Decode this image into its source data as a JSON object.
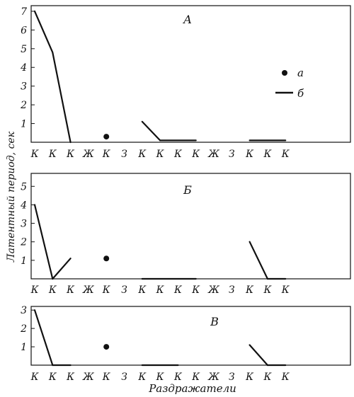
{
  "figure": {
    "ylabel": "Латентный период, сек",
    "xlabel": "Раздражатели"
  },
  "legend": {
    "items": [
      {
        "marker": "dot",
        "label": "а"
      },
      {
        "marker": "line",
        "label": "б"
      }
    ]
  },
  "stimuli": [
    "К",
    "К",
    "К",
    "Ж",
    "К",
    "З",
    "К",
    "К",
    "К",
    "К",
    "Ж",
    "З",
    "К",
    "К",
    "К"
  ],
  "chart_data": [
    {
      "type": "line",
      "title": "А",
      "yticks": [
        1,
        2,
        3,
        4,
        5,
        6,
        7
      ],
      "ylim": [
        0,
        7.3
      ],
      "line_segments": [
        [
          [
            0,
            7
          ],
          [
            1,
            4.8
          ],
          [
            2,
            0
          ]
        ],
        [
          [
            6,
            1.1
          ],
          [
            7,
            0.1
          ]
        ],
        [
          [
            7,
            0.1
          ],
          [
            9,
            0.1
          ]
        ],
        [
          [
            12,
            0.1
          ],
          [
            14,
            0.1
          ]
        ]
      ],
      "points": [
        [
          4,
          0.3
        ]
      ]
    },
    {
      "type": "line",
      "title": "Б",
      "yticks": [
        1,
        2,
        3,
        4,
        5
      ],
      "ylim": [
        0,
        5.7
      ],
      "line_segments": [
        [
          [
            0,
            4
          ],
          [
            1,
            0
          ]
        ],
        [
          [
            1,
            0
          ],
          [
            2,
            1.1
          ]
        ],
        [
          [
            6,
            0
          ],
          [
            9,
            0
          ]
        ],
        [
          [
            12,
            2
          ],
          [
            13,
            0
          ]
        ],
        [
          [
            13,
            0
          ],
          [
            14,
            0
          ]
        ]
      ],
      "points": [
        [
          4,
          1.1
        ]
      ]
    },
    {
      "type": "line",
      "title": "В",
      "yticks": [
        1,
        2,
        3
      ],
      "ylim": [
        0,
        3.2
      ],
      "line_segments": [
        [
          [
            0,
            3
          ],
          [
            1,
            0
          ]
        ],
        [
          [
            1,
            0
          ],
          [
            2,
            0
          ]
        ],
        [
          [
            6,
            0
          ],
          [
            8,
            0
          ]
        ],
        [
          [
            12,
            1.1
          ],
          [
            13,
            0
          ]
        ],
        [
          [
            13,
            0
          ],
          [
            14,
            0
          ]
        ]
      ],
      "points": [
        [
          4,
          1
        ]
      ]
    }
  ]
}
